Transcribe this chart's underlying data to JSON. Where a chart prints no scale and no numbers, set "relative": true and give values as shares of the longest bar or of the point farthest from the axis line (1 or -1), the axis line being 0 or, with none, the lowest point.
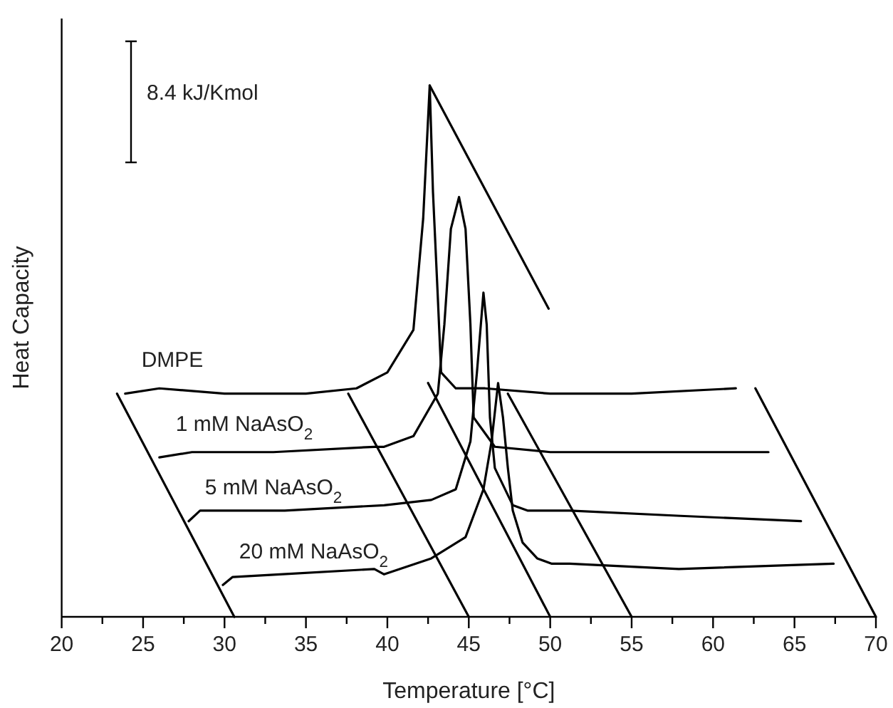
{
  "chart_data": {
    "type": "line",
    "relative": true,
    "xlabel": "Temperature [°C]",
    "ylabel": "Heat Capacity",
    "annotations": [
      "8.4 kJ/Kmol"
    ],
    "xlim": [
      20,
      70
    ],
    "xticks": [
      20,
      {
        "value": 22.5,
        "label": null
      },
      25,
      {
        "value": 27.5,
        "label": null
      },
      30,
      {
        "value": 32.5,
        "label": null
      },
      35,
      {
        "value": 37.5,
        "label": null
      },
      40,
      {
        "value": 42.5,
        "label": null
      },
      45,
      {
        "value": 47.5,
        "label": null
      },
      50,
      {
        "value": 52.5,
        "label": null
      },
      55,
      {
        "value": 57.5,
        "label": null
      },
      60,
      {
        "value": 62.5,
        "label": null
      },
      65,
      {
        "value": 67.5,
        "label": null
      },
      70
    ],
    "grid": false,
    "marker": "none",
    "line_style": "solid",
    "series": [
      {
        "name": "DMPE",
        "color": "#000000",
        "x": [
          23.9,
          26,
          30,
          35,
          38.1,
          40,
          41.6,
          42.2,
          42.6,
          42.8,
          43.1,
          43.3,
          44.2,
          46,
          50,
          55,
          61.4
        ],
        "values": [
          0.42,
          0.43,
          0.42,
          0.42,
          0.43,
          0.46,
          0.54,
          0.75,
          1.0,
          0.8,
          0.6,
          0.46,
          0.43,
          0.43,
          0.42,
          0.42,
          0.43
        ]
      },
      {
        "name": "1 mM NaAsO$_{2}$",
        "color": "#000000",
        "x": [
          26,
          28,
          33,
          39.2,
          39.8,
          41.6,
          43.1,
          43.5,
          43.9,
          44.4,
          44.8,
          45.1,
          45.3,
          46.6,
          50,
          57.3,
          63.4
        ],
        "values": [
          0.3,
          0.31,
          0.31,
          0.32,
          0.32,
          0.34,
          0.42,
          0.55,
          0.73,
          0.79,
          0.73,
          0.55,
          0.375,
          0.32,
          0.31,
          0.31,
          0.31
        ]
      },
      {
        "name": "5 mM NaAsO$_{2}$",
        "color": "#000000",
        "x": [
          27.8,
          28.5,
          33.7,
          39.8,
          42.7,
          44.2,
          45.1,
          45.5,
          45.9,
          46.1,
          46.3,
          46.6,
          47.7,
          48.6,
          51.2,
          58,
          65.4
        ],
        "values": [
          0.18,
          0.2,
          0.2,
          0.21,
          0.22,
          0.24,
          0.33,
          0.46,
          0.61,
          0.55,
          0.375,
          0.28,
          0.21,
          0.2,
          0.2,
          0.19,
          0.18
        ]
      },
      {
        "name": "20 mM NaAsO$_{2}$",
        "color": "#000000",
        "x": [
          29.9,
          30.5,
          33.4,
          39.2,
          39.8,
          42.7,
          44.8,
          45.9,
          46.4,
          46.8,
          47.1,
          47.4,
          47.7,
          48.3,
          49.2,
          50.1,
          51.2,
          57.9,
          67.4
        ],
        "values": [
          0.06,
          0.075,
          0.08,
          0.09,
          0.08,
          0.11,
          0.15,
          0.24,
          0.33,
          0.44,
          0.375,
          0.28,
          0.2,
          0.14,
          0.11,
          0.1,
          0.1,
          0.09,
          0.1
        ]
      },
      {
        "color": "#000000",
        "x": [
          23.4,
          30.6
        ],
        "values": [
          0.42,
          0
        ]
      },
      {
        "color": "#000000",
        "x": [
          37.6,
          45
        ],
        "values": [
          0.42,
          0
        ]
      },
      {
        "color": "#000000",
        "x": [
          42.5,
          50
        ],
        "values": [
          0.44,
          0
        ]
      },
      {
        "color": "#000000",
        "x": [
          47.4,
          55
        ],
        "values": [
          0.42,
          0
        ]
      },
      {
        "color": "#000000",
        "x": [
          62.6,
          70
        ],
        "values": [
          0.43,
          0
        ]
      },
      {
        "color": "#000000",
        "x": [
          42.6,
          49.9
        ],
        "values": [
          1.0,
          0.58
        ]
      }
    ]
  }
}
